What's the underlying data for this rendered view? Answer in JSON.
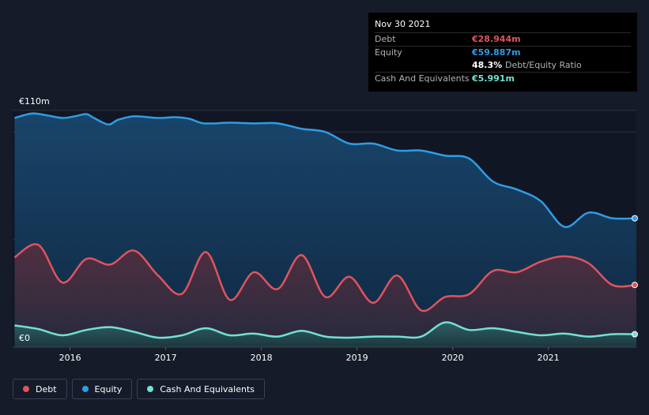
{
  "tooltip": {
    "date": "Nov 30 2021",
    "rows": [
      {
        "label": "Debt",
        "value": "€28.944m",
        "color": "#e0535f"
      },
      {
        "label": "Equity",
        "value": "€59.887m",
        "color": "#2f9ce6"
      },
      {
        "label": "",
        "value": "48.3%",
        "suffix": "Debt/Equity Ratio",
        "color": "#ffffff"
      },
      {
        "label": "Cash And Equivalents",
        "value": "€5.991m",
        "color": "#71e1d2"
      }
    ]
  },
  "legend": [
    {
      "label": "Debt",
      "color": "#e0535f"
    },
    {
      "label": "Equity",
      "color": "#2f9ce6"
    },
    {
      "label": "Cash And Equivalents",
      "color": "#71e1d2"
    }
  ],
  "chart_data": {
    "type": "area",
    "ylabel_top": "€110m",
    "ylabel_bottom": "€0",
    "ylim": [
      0,
      110
    ],
    "xlim": [
      2015.4,
      2021.92
    ],
    "x_ticks": [
      "2016",
      "2017",
      "2018",
      "2019",
      "2020",
      "2021"
    ],
    "series": [
      {
        "name": "Equity",
        "color": "#2f9ce6",
        "points": [
          [
            2015.42,
            106.5
          ],
          [
            2015.6,
            108.6
          ],
          [
            2015.75,
            107.8
          ],
          [
            2015.92,
            106.5
          ],
          [
            2016.05,
            107.3
          ],
          [
            2016.17,
            108.3
          ],
          [
            2016.25,
            106.5
          ],
          [
            2016.4,
            103.5
          ],
          [
            2016.5,
            105.6
          ],
          [
            2016.67,
            107.3
          ],
          [
            2016.92,
            106.5
          ],
          [
            2017.1,
            106.9
          ],
          [
            2017.25,
            106.1
          ],
          [
            2017.4,
            104.0
          ],
          [
            2017.67,
            104.3
          ],
          [
            2017.92,
            104.0
          ],
          [
            2018.17,
            104.0
          ],
          [
            2018.42,
            101.5
          ],
          [
            2018.67,
            100.0
          ],
          [
            2018.92,
            94.6
          ],
          [
            2019.17,
            94.6
          ],
          [
            2019.42,
            91.4
          ],
          [
            2019.67,
            91.4
          ],
          [
            2019.92,
            89.0
          ],
          [
            2020.17,
            87.7
          ],
          [
            2020.42,
            77.0
          ],
          [
            2020.67,
            73.3
          ],
          [
            2020.92,
            67.9
          ],
          [
            2021.17,
            55.9
          ],
          [
            2021.42,
            62.5
          ],
          [
            2021.67,
            59.9
          ],
          [
            2021.92,
            59.9
          ]
        ]
      },
      {
        "name": "Debt",
        "color": "#e0535f",
        "points": [
          [
            2015.42,
            41.7
          ],
          [
            2015.67,
            47.5
          ],
          [
            2015.92,
            30.0
          ],
          [
            2016.17,
            41.0
          ],
          [
            2016.42,
            38.4
          ],
          [
            2016.67,
            44.9
          ],
          [
            2016.92,
            33.3
          ],
          [
            2017.17,
            24.8
          ],
          [
            2017.42,
            44.2
          ],
          [
            2017.67,
            22.0
          ],
          [
            2017.92,
            34.8
          ],
          [
            2018.17,
            27.0
          ],
          [
            2018.42,
            42.8
          ],
          [
            2018.67,
            23.3
          ],
          [
            2018.92,
            32.7
          ],
          [
            2019.17,
            20.6
          ],
          [
            2019.42,
            33.3
          ],
          [
            2019.67,
            17.1
          ],
          [
            2019.92,
            23.3
          ],
          [
            2020.17,
            24.6
          ],
          [
            2020.42,
            35.4
          ],
          [
            2020.67,
            34.8
          ],
          [
            2020.92,
            39.7
          ],
          [
            2021.17,
            42.2
          ],
          [
            2021.42,
            39.0
          ],
          [
            2021.67,
            28.9
          ],
          [
            2021.92,
            28.9
          ]
        ]
      },
      {
        "name": "Cash And Equivalents",
        "color": "#71e1d2",
        "points": [
          [
            2015.42,
            10.1
          ],
          [
            2015.67,
            8.4
          ],
          [
            2015.92,
            5.5
          ],
          [
            2016.17,
            8.0
          ],
          [
            2016.42,
            9.3
          ],
          [
            2016.67,
            7.1
          ],
          [
            2016.92,
            4.4
          ],
          [
            2017.17,
            5.5
          ],
          [
            2017.42,
            8.8
          ],
          [
            2017.67,
            5.5
          ],
          [
            2017.92,
            6.3
          ],
          [
            2018.17,
            4.9
          ],
          [
            2018.42,
            7.6
          ],
          [
            2018.67,
            4.9
          ],
          [
            2018.92,
            4.4
          ],
          [
            2019.17,
            4.9
          ],
          [
            2019.42,
            4.9
          ],
          [
            2019.67,
            4.9
          ],
          [
            2019.92,
            11.5
          ],
          [
            2020.17,
            8.0
          ],
          [
            2020.42,
            8.8
          ],
          [
            2020.67,
            7.1
          ],
          [
            2020.92,
            5.5
          ],
          [
            2021.17,
            6.3
          ],
          [
            2021.42,
            4.9
          ],
          [
            2021.67,
            6.0
          ],
          [
            2021.92,
            6.0
          ]
        ]
      }
    ]
  }
}
